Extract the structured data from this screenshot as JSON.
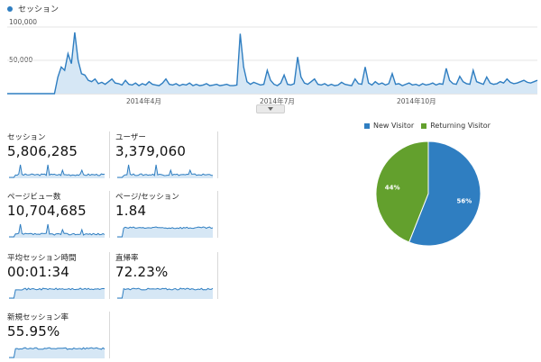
{
  "colors": {
    "accent": "#2f7ec1",
    "area": "#d6e7f5",
    "new_visitor": "#2f7ec1",
    "returning_visitor": "#63a02d"
  },
  "legend": {
    "label": "セッション"
  },
  "main_chart": {
    "y_ticks": [
      "100,000",
      "50,000"
    ],
    "x_ticks": [
      "2014年4月",
      "2014年7月",
      "2014年10月"
    ]
  },
  "chart_data": [
    {
      "type": "area",
      "title": "",
      "series": [
        {
          "name": "セッション",
          "values": [
            0,
            0,
            0,
            0,
            0,
            0,
            0,
            0,
            0,
            0,
            0,
            0,
            0,
            0,
            0,
            25000,
            40000,
            35000,
            60000,
            45000,
            92000,
            50000,
            30000,
            28000,
            20000,
            18000,
            22000,
            15000,
            17000,
            14000,
            18000,
            22000,
            16000,
            15000,
            13000,
            20000,
            14000,
            13000,
            16000,
            12000,
            15000,
            13000,
            18000,
            14000,
            13000,
            12000,
            16000,
            22000,
            14000,
            13000,
            15000,
            12000,
            14000,
            13000,
            16000,
            12000,
            14000,
            12000,
            13000,
            15000,
            12000,
            13000,
            14000,
            12000,
            13000,
            14000,
            12000,
            12000,
            13000,
            90000,
            40000,
            18000,
            14000,
            17000,
            15000,
            13000,
            14000,
            35000,
            20000,
            14000,
            12000,
            16000,
            28000,
            14000,
            13000,
            15000,
            55000,
            25000,
            16000,
            14000,
            18000,
            22000,
            14000,
            13000,
            15000,
            12000,
            14000,
            12000,
            13000,
            17000,
            14000,
            13000,
            12000,
            22000,
            15000,
            14000,
            40000,
            16000,
            13000,
            18000,
            14000,
            16000,
            13000,
            15000,
            30000,
            14000,
            15000,
            12000,
            14000,
            16000,
            13000,
            14000,
            12000,
            15000,
            13000,
            14000,
            16000,
            13000,
            15000,
            14000,
            38000,
            20000,
            15000,
            14000,
            26000,
            18000,
            15000,
            14000,
            35000,
            18000,
            16000,
            14000,
            25000,
            16000,
            14000,
            15000,
            18000,
            16000,
            22000,
            17000,
            15000,
            16000,
            18000,
            20000,
            17000,
            16000,
            18000,
            20000
          ]
        }
      ],
      "ylim": [
        0,
        100000
      ],
      "x_ticks": [
        "2014年4月",
        "2014年7月",
        "2014年10月"
      ],
      "grid": true
    },
    {
      "type": "pie",
      "categories": [
        "New Visitor",
        "Returning Visitor"
      ],
      "values": [
        56,
        44
      ]
    }
  ],
  "metrics": [
    {
      "label": "セッション",
      "value": "5,806,285"
    },
    {
      "label": "ユーザー",
      "value": "3,379,060"
    },
    {
      "label": "ページビュー数",
      "value": "10,704,685"
    },
    {
      "label": "ページ/セッション",
      "value": "1.84"
    },
    {
      "label": "平均セッション時間",
      "value": "00:01:34"
    },
    {
      "label": "直帰率",
      "value": "72.23%"
    },
    {
      "label": "新規セッション率",
      "value": "55.95%"
    }
  ],
  "pie": {
    "legend": [
      "New Visitor",
      "Returning Visitor"
    ],
    "labels": [
      "56%",
      "44%"
    ]
  }
}
